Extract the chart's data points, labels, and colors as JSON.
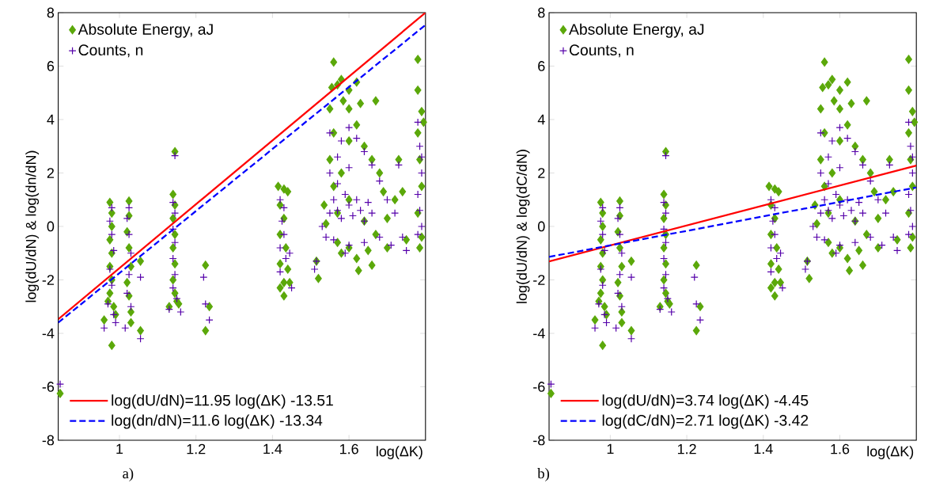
{
  "chart_data": [
    {
      "type": "scatter",
      "xlabel": "log(ΔK)",
      "ylabel": "log(dU/dN) & log(dn/dN)",
      "xlim": [
        0.84,
        1.8
      ],
      "ylim": [
        -8,
        8
      ],
      "xticks": [
        1,
        1.2,
        1.4,
        1.6
      ],
      "yticks": [
        -8,
        -6,
        -4,
        -2,
        0,
        2,
        4,
        6,
        8
      ],
      "legend": "top left",
      "annotations": [
        "a)"
      ],
      "series": [
        {
          "name": "Absolute Energy, aJ",
          "marker": "diamond",
          "color": "#5ba80a",
          "x": [
            0.845,
            0.975,
            0.98,
            0.98,
            0.975,
            0.98,
            0.975,
            0.98,
            0.975,
            0.97,
            0.985,
            0.96,
            0.99,
            0.98,
            1.025,
            1.025,
            1.02,
            1.025,
            1.03,
            1.02,
            1.025,
            1.03,
            1.03,
            1.055,
            1.055,
            1.14,
            1.145,
            1.14,
            1.145,
            1.14,
            1.145,
            1.14,
            1.145,
            1.15,
            1.13,
            1.155,
            1.145,
            1.225,
            1.235,
            1.225,
            1.415,
            1.43,
            1.44,
            1.42,
            1.43,
            1.42,
            1.435,
            1.42,
            1.44,
            1.43,
            1.445,
            1.43,
            1.42,
            1.515,
            1.52,
            1.535,
            1.54,
            1.55,
            1.56,
            1.555,
            1.57,
            1.58,
            1.585,
            1.6,
            1.6,
            1.62,
            1.63,
            1.67,
            1.56,
            1.55,
            1.56,
            1.57,
            1.57,
            1.58,
            1.6,
            1.62,
            1.625,
            1.66,
            1.65,
            1.6,
            1.62,
            1.64,
            1.66,
            1.68,
            1.69,
            1.7,
            1.72,
            1.73,
            1.74,
            1.75,
            1.58,
            1.6,
            1.64,
            1.67,
            1.7,
            1.78,
            1.78,
            1.79,
            1.78,
            1.785,
            1.79,
            1.78,
            1.79,
            1.785,
            1.795
          ],
          "values": [
            -6.25,
            0.9,
            0.5,
            0.0,
            -0.5,
            -1.0,
            -1.5,
            -2.0,
            -2.5,
            -2.8,
            -3.0,
            -3.5,
            -3.3,
            -4.45,
            0.95,
            0.4,
            -0.2,
            -0.8,
            -1.5,
            -2.1,
            -2.6,
            -3.2,
            -3.6,
            -1.3,
            -3.9,
            1.2,
            0.8,
            0.3,
            -0.3,
            -0.8,
            -1.4,
            -2.0,
            -2.5,
            -2.8,
            -3.0,
            -2.9,
            2.8,
            -1.45,
            -3.0,
            -3.9,
            1.5,
            1.4,
            1.3,
            0.8,
            0.3,
            -0.3,
            -0.8,
            -1.4,
            -1.6,
            -2.1,
            -2.1,
            -2.6,
            -2.3,
            -1.3,
            -1.95,
            0.8,
            0.1,
            4.4,
            6.15,
            5.2,
            5.3,
            5.5,
            4.7,
            5.1,
            4.4,
            5.4,
            4.6,
            4.7,
            3.5,
            2.5,
            1.5,
            0.5,
            -0.6,
            -1.0,
            -0.8,
            -1.2,
            -1.65,
            -1.45,
            -0.9,
            3.2,
            3.8,
            3.0,
            2.5,
            2.0,
            1.3,
            0.3,
            1.0,
            2.5,
            1.3,
            -0.5,
            2.0,
            1.0,
            0.2,
            -0.3,
            -0.8,
            6.25,
            5.1,
            4.3,
            3.5,
            2.5,
            1.5,
            0.5,
            -0.4,
            -0.8,
            3.9
          ]
        },
        {
          "name": "Counts, n",
          "marker": "cross",
          "color": "#5500aa",
          "x": [
            0.845,
            0.98,
            0.975,
            0.98,
            0.985,
            0.975,
            0.98,
            0.97,
            0.985,
            0.96,
            0.99,
            1.025,
            1.02,
            1.025,
            1.03,
            1.025,
            1.02,
            1.03,
            1.015,
            1.055,
            1.055,
            1.14,
            1.145,
            1.14,
            1.145,
            1.14,
            1.145,
            1.14,
            1.15,
            1.13,
            1.16,
            1.145,
            1.22,
            1.225,
            1.235,
            1.42,
            1.43,
            1.425,
            1.43,
            1.42,
            1.435,
            1.42,
            1.445,
            1.45,
            1.515,
            1.51,
            1.53,
            1.54,
            1.55,
            1.56,
            1.57,
            1.58,
            1.59,
            1.6,
            1.61,
            1.62,
            1.63,
            1.64,
            1.65,
            1.66,
            1.55,
            1.57,
            1.58,
            1.6,
            1.62,
            1.64,
            1.66,
            1.68,
            1.7,
            1.72,
            1.74,
            1.75,
            1.73,
            1.55,
            1.57,
            1.6,
            1.56,
            1.6,
            1.64,
            1.68,
            1.71,
            1.59,
            1.78,
            1.785,
            1.79,
            1.78,
            1.785,
            1.79,
            1.78,
            1.79
          ],
          "values": [
            -5.9,
            0.7,
            0.2,
            -0.3,
            -0.9,
            -1.6,
            -2.2,
            -2.9,
            -3.3,
            -3.8,
            -3.6,
            0.7,
            0.3,
            -0.3,
            -1.0,
            -1.8,
            -2.5,
            -3.0,
            -3.8,
            -1.9,
            -4.2,
            0.9,
            0.5,
            -0.1,
            -0.6,
            -1.2,
            -1.8,
            -2.3,
            -2.7,
            -3.1,
            -3.2,
            2.65,
            -1.9,
            -2.9,
            -3.5,
            1.0,
            0.7,
            0.2,
            -0.3,
            -0.8,
            -1.2,
            -1.7,
            -1.0,
            -2.3,
            -1.3,
            -1.6,
            0.0,
            -0.4,
            0.5,
            1.0,
            0.6,
            0.3,
            1.2,
            0.8,
            0.4,
            1.0,
            0.6,
            0.2,
            0.9,
            0.5,
            3.5,
            2.6,
            3.2,
            3.7,
            3.3,
            2.8,
            2.3,
            1.7,
            1.0,
            0.5,
            -0.4,
            -0.9,
            2.3,
            2.0,
            1.6,
            2.2,
            -0.5,
            -0.7,
            -0.6,
            -0.4,
            -0.7,
            -1.0,
            3.9,
            3.0,
            2.0,
            1.2,
            0.6,
            0.0,
            -0.3,
            2.6
          ]
        },
        {
          "name": "log(dU/dN)=11.95 log(ΔK) -13.51",
          "type": "line",
          "line_style": "solid",
          "color": "#ff0000",
          "x": [
            0.84,
            1.8
          ],
          "values": [
            -3.47,
            8.0
          ]
        },
        {
          "name": "log(dn/dN)=11.6 log(ΔK) -13.34",
          "type": "line",
          "line_style": "dashed",
          "color": "#0000ff",
          "x": [
            0.84,
            1.8
          ],
          "values": [
            -3.6,
            7.54
          ]
        }
      ]
    },
    {
      "type": "scatter",
      "xlabel": "log(ΔK)",
      "ylabel": "log(dU/dN) & log(dC/dN)",
      "xlim": [
        0.84,
        1.8
      ],
      "ylim": [
        -8,
        8
      ],
      "xticks": [
        1,
        1.2,
        1.4,
        1.6
      ],
      "yticks": [
        -8,
        -6,
        -4,
        -2,
        0,
        2,
        4,
        6,
        8
      ],
      "legend": "top left",
      "annotations": [
        "b)"
      ],
      "series": [
        {
          "name": "Absolute Energy, aJ",
          "marker": "diamond",
          "color": "#5ba80a",
          "x": [
            0.845,
            0.975,
            0.98,
            0.98,
            0.975,
            0.98,
            0.975,
            0.98,
            0.975,
            0.97,
            0.985,
            0.96,
            0.99,
            0.98,
            1.025,
            1.025,
            1.02,
            1.025,
            1.03,
            1.02,
            1.025,
            1.03,
            1.03,
            1.055,
            1.055,
            1.14,
            1.145,
            1.14,
            1.145,
            1.14,
            1.145,
            1.14,
            1.145,
            1.15,
            1.13,
            1.155,
            1.145,
            1.225,
            1.235,
            1.225,
            1.415,
            1.43,
            1.44,
            1.42,
            1.43,
            1.42,
            1.435,
            1.42,
            1.44,
            1.43,
            1.445,
            1.43,
            1.42,
            1.515,
            1.52,
            1.535,
            1.54,
            1.55,
            1.56,
            1.555,
            1.57,
            1.58,
            1.585,
            1.6,
            1.6,
            1.62,
            1.63,
            1.67,
            1.56,
            1.55,
            1.56,
            1.57,
            1.57,
            1.58,
            1.6,
            1.62,
            1.625,
            1.66,
            1.65,
            1.6,
            1.62,
            1.64,
            1.66,
            1.68,
            1.69,
            1.7,
            1.72,
            1.73,
            1.74,
            1.75,
            1.58,
            1.6,
            1.64,
            1.67,
            1.7,
            1.78,
            1.78,
            1.79,
            1.78,
            1.785,
            1.79,
            1.78,
            1.79,
            1.785,
            1.795
          ],
          "values": [
            -6.25,
            0.9,
            0.5,
            0.0,
            -0.5,
            -1.0,
            -1.5,
            -2.0,
            -2.5,
            -2.8,
            -3.0,
            -3.5,
            -3.3,
            -4.45,
            0.95,
            0.4,
            -0.2,
            -0.8,
            -1.5,
            -2.1,
            -2.6,
            -3.2,
            -3.6,
            -1.3,
            -3.9,
            1.2,
            0.8,
            0.3,
            -0.3,
            -0.8,
            -1.4,
            -2.0,
            -2.5,
            -2.8,
            -3.0,
            -2.9,
            2.8,
            -1.45,
            -3.0,
            -3.9,
            1.5,
            1.4,
            1.3,
            0.8,
            0.3,
            -0.3,
            -0.8,
            -1.4,
            -1.6,
            -2.1,
            -2.1,
            -2.6,
            -2.3,
            -1.3,
            -1.95,
            0.8,
            0.1,
            4.4,
            6.15,
            5.2,
            5.3,
            5.5,
            4.7,
            5.1,
            4.4,
            5.4,
            4.6,
            4.7,
            3.5,
            2.5,
            1.5,
            0.5,
            -0.6,
            -1.0,
            -0.8,
            -1.2,
            -1.65,
            -1.45,
            -0.9,
            3.2,
            3.8,
            3.0,
            2.5,
            2.0,
            1.3,
            0.3,
            1.0,
            2.5,
            1.3,
            -0.5,
            2.0,
            1.0,
            0.2,
            -0.3,
            -0.8,
            6.25,
            5.1,
            4.3,
            3.5,
            2.5,
            1.5,
            0.5,
            -0.4,
            -0.8,
            3.9
          ]
        },
        {
          "name": "Counts, n",
          "marker": "cross",
          "color": "#5500aa",
          "x": [
            0.845,
            0.98,
            0.975,
            0.98,
            0.985,
            0.975,
            0.98,
            0.97,
            0.985,
            0.96,
            0.99,
            1.025,
            1.02,
            1.025,
            1.03,
            1.025,
            1.02,
            1.03,
            1.015,
            1.055,
            1.055,
            1.14,
            1.145,
            1.14,
            1.145,
            1.14,
            1.145,
            1.14,
            1.15,
            1.13,
            1.16,
            1.145,
            1.22,
            1.225,
            1.235,
            1.42,
            1.43,
            1.425,
            1.43,
            1.42,
            1.435,
            1.42,
            1.445,
            1.45,
            1.515,
            1.51,
            1.53,
            1.54,
            1.55,
            1.56,
            1.57,
            1.58,
            1.59,
            1.6,
            1.61,
            1.62,
            1.63,
            1.64,
            1.65,
            1.66,
            1.55,
            1.57,
            1.58,
            1.6,
            1.62,
            1.64,
            1.66,
            1.68,
            1.7,
            1.72,
            1.74,
            1.75,
            1.73,
            1.55,
            1.57,
            1.6,
            1.56,
            1.6,
            1.64,
            1.68,
            1.71,
            1.59,
            1.78,
            1.785,
            1.79,
            1.78,
            1.785,
            1.79,
            1.78,
            1.79
          ],
          "values": [
            -5.9,
            0.7,
            0.2,
            -0.3,
            -0.9,
            -1.6,
            -2.2,
            -2.9,
            -3.3,
            -3.8,
            -3.6,
            0.7,
            0.3,
            -0.3,
            -1.0,
            -1.8,
            -2.5,
            -3.0,
            -3.8,
            -1.9,
            -4.2,
            0.9,
            0.5,
            -0.1,
            -0.6,
            -1.2,
            -1.8,
            -2.3,
            -2.7,
            -3.1,
            -3.2,
            2.65,
            -1.9,
            -2.9,
            -3.5,
            1.0,
            0.7,
            0.2,
            -0.3,
            -0.8,
            -1.2,
            -1.7,
            -1.0,
            -2.3,
            -1.3,
            -1.6,
            0.0,
            -0.4,
            0.5,
            1.0,
            0.6,
            0.3,
            1.2,
            0.8,
            0.4,
            1.0,
            0.6,
            0.2,
            0.9,
            0.5,
            3.5,
            2.6,
            3.2,
            3.7,
            3.3,
            2.8,
            2.3,
            1.7,
            1.0,
            0.5,
            -0.4,
            -0.9,
            2.3,
            2.0,
            1.6,
            2.2,
            -0.5,
            -0.7,
            -0.6,
            -0.4,
            -0.7,
            -1.0,
            3.9,
            3.0,
            2.0,
            1.2,
            0.6,
            0.0,
            -0.3,
            2.6
          ]
        },
        {
          "name": "log(dU/dN)=3.74 log(ΔK) -4.45",
          "type": "line",
          "line_style": "solid",
          "color": "#ff0000",
          "x": [
            0.84,
            1.8
          ],
          "values": [
            -1.31,
            2.28
          ]
        },
        {
          "name": "log(dC/dN)=2.71 log(ΔK) -3.42",
          "type": "line",
          "line_style": "dashed",
          "color": "#0000ff",
          "x": [
            0.84,
            1.8
          ],
          "values": [
            -1.14,
            1.46
          ]
        }
      ]
    }
  ]
}
